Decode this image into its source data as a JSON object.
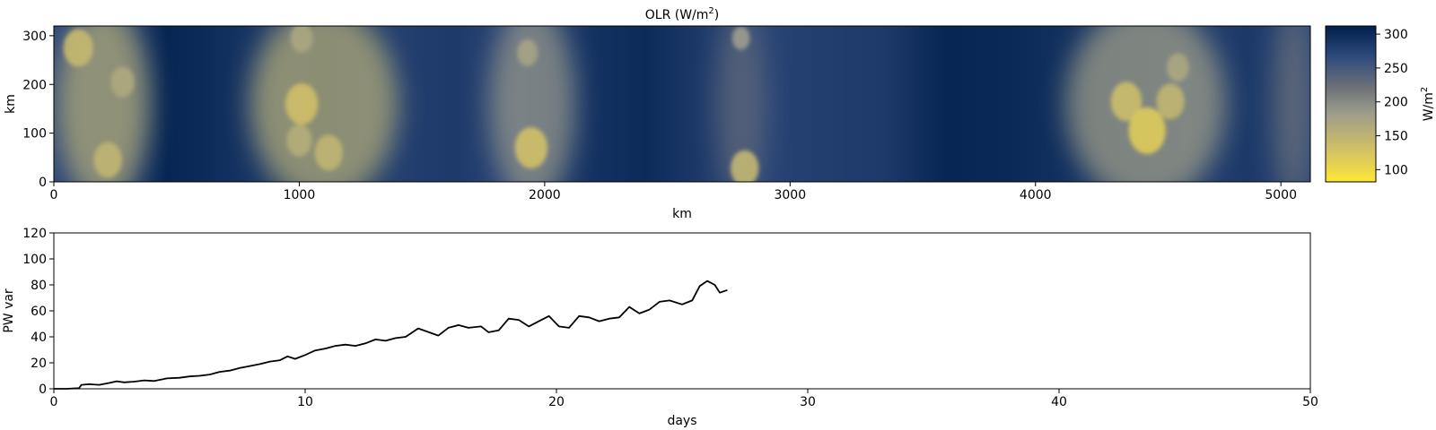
{
  "chart_data": [
    {
      "type": "heatmap",
      "title": "OLR (W/m",
      "title_superscript": "2",
      "title_suffix": ")",
      "xlabel": "km",
      "ylabel": "km",
      "xlim": [
        0,
        5120
      ],
      "ylim": [
        0,
        320
      ],
      "xticks": [
        "0",
        "1000",
        "2000",
        "3000",
        "4000",
        "5000"
      ],
      "xtick_values": [
        0,
        1000,
        2000,
        3000,
        4000,
        5000
      ],
      "yticks": [
        "0",
        "100",
        "200",
        "300"
      ],
      "ytick_values": [
        0,
        100,
        200,
        300
      ],
      "colormap": "cividis_r",
      "colorbar": {
        "label": "W/m",
        "label_superscript": "2",
        "range": [
          82,
          312
        ],
        "ticks": [
          "100",
          "150",
          "200",
          "250",
          "300"
        ],
        "tick_values": [
          100,
          150,
          200,
          250,
          300
        ],
        "low_color": "#fde737",
        "mid_color": "#7c7b78",
        "high_color": "#00204c"
      },
      "convective_clusters": [
        {
          "x_center_km": 200,
          "width_km": 380,
          "olr_min": 160
        },
        {
          "x_center_km": 1100,
          "width_km": 600,
          "olr_min": 160
        },
        {
          "x_center_km": 1950,
          "width_km": 350,
          "olr_min": 190
        },
        {
          "x_center_km": 2800,
          "width_km": 200,
          "olr_min": 230
        },
        {
          "x_center_km": 4450,
          "width_km": 650,
          "olr_min": 180
        },
        {
          "x_center_km": 5050,
          "width_km": 150,
          "olr_min": 220
        }
      ],
      "cold_cloud_cores": [
        {
          "x_km": 100,
          "y_km": 275,
          "olr": 145
        },
        {
          "x_km": 280,
          "y_km": 205,
          "olr": 165
        },
        {
          "x_km": 220,
          "y_km": 45,
          "olr": 150
        },
        {
          "x_km": 1010,
          "y_km": 160,
          "olr": 135
        },
        {
          "x_km": 1010,
          "y_km": 295,
          "olr": 170
        },
        {
          "x_km": 1120,
          "y_km": 60,
          "olr": 150
        },
        {
          "x_km": 1000,
          "y_km": 85,
          "olr": 160
        },
        {
          "x_km": 1945,
          "y_km": 70,
          "olr": 135
        },
        {
          "x_km": 1930,
          "y_km": 265,
          "olr": 175
        },
        {
          "x_km": 2800,
          "y_km": 295,
          "olr": 185
        },
        {
          "x_km": 2815,
          "y_km": 28,
          "olr": 150
        },
        {
          "x_km": 4370,
          "y_km": 165,
          "olr": 140
        },
        {
          "x_km": 4455,
          "y_km": 105,
          "olr": 120
        },
        {
          "x_km": 4550,
          "y_km": 165,
          "olr": 150
        },
        {
          "x_km": 4580,
          "y_km": 235,
          "olr": 170
        }
      ]
    },
    {
      "type": "line",
      "title": "",
      "xlabel": "days",
      "ylabel": "PW var",
      "xlim": [
        0,
        50
      ],
      "ylim": [
        0,
        120
      ],
      "xticks": [
        "0",
        "10",
        "20",
        "30",
        "40",
        "50"
      ],
      "xtick_values": [
        0,
        10,
        20,
        30,
        40,
        50
      ],
      "yticks": [
        "0",
        "20",
        "40",
        "60",
        "80",
        "100",
        "120"
      ],
      "ytick_values": [
        0,
        20,
        40,
        60,
        80,
        100,
        120
      ],
      "line_color": "#000000",
      "series": [
        {
          "x": [
            0,
            0.5,
            1.0,
            1.1,
            1.4,
            1.8,
            2.2,
            2.5,
            2.8,
            3.2,
            3.6,
            4.0,
            4.5,
            5.0,
            5.4,
            5.8,
            6.2,
            6.6,
            7.0,
            7.4,
            7.8,
            8.2,
            8.6,
            9.0,
            9.3,
            9.6,
            10.0,
            10.4,
            10.8,
            11.2,
            11.6,
            12.0,
            12.4,
            12.8,
            13.2,
            13.6,
            14.0,
            14.5,
            15.0,
            15.3,
            15.7,
            16.1,
            16.5,
            17.0,
            17.3,
            17.7,
            18.1,
            18.5,
            18.9,
            19.3,
            19.7,
            20.1,
            20.5,
            20.9,
            21.3,
            21.7,
            22.1,
            22.5,
            22.9,
            23.3,
            23.7,
            24.1,
            24.5,
            25.0,
            25.4,
            25.7,
            26.0,
            26.3,
            26.5,
            26.8
          ],
          "y": [
            0,
            0,
            0.5,
            3.0,
            3.5,
            3.0,
            4.5,
            5.8,
            5.0,
            5.5,
            6.5,
            6.0,
            8.0,
            8.5,
            9.5,
            10.0,
            11.0,
            13.0,
            14.0,
            16.0,
            17.5,
            19.0,
            21.0,
            22.0,
            25.0,
            23.0,
            26.0,
            29.5,
            31.0,
            33.0,
            34.0,
            33.0,
            35.0,
            38.0,
            37.0,
            39.0,
            40.0,
            46.5,
            43.0,
            41.0,
            47.0,
            49.0,
            47.0,
            48.0,
            43.5,
            45.0,
            54.0,
            53.0,
            48.0,
            52.0,
            56.0,
            48.0,
            47.0,
            56.0,
            55.0,
            52.0,
            54.0,
            55.0,
            63.0,
            58.0,
            61.0,
            67.0,
            68.0,
            65.0,
            68.0,
            79.0,
            83.0,
            80.0,
            74.0,
            76.0
          ]
        }
      ]
    }
  ]
}
